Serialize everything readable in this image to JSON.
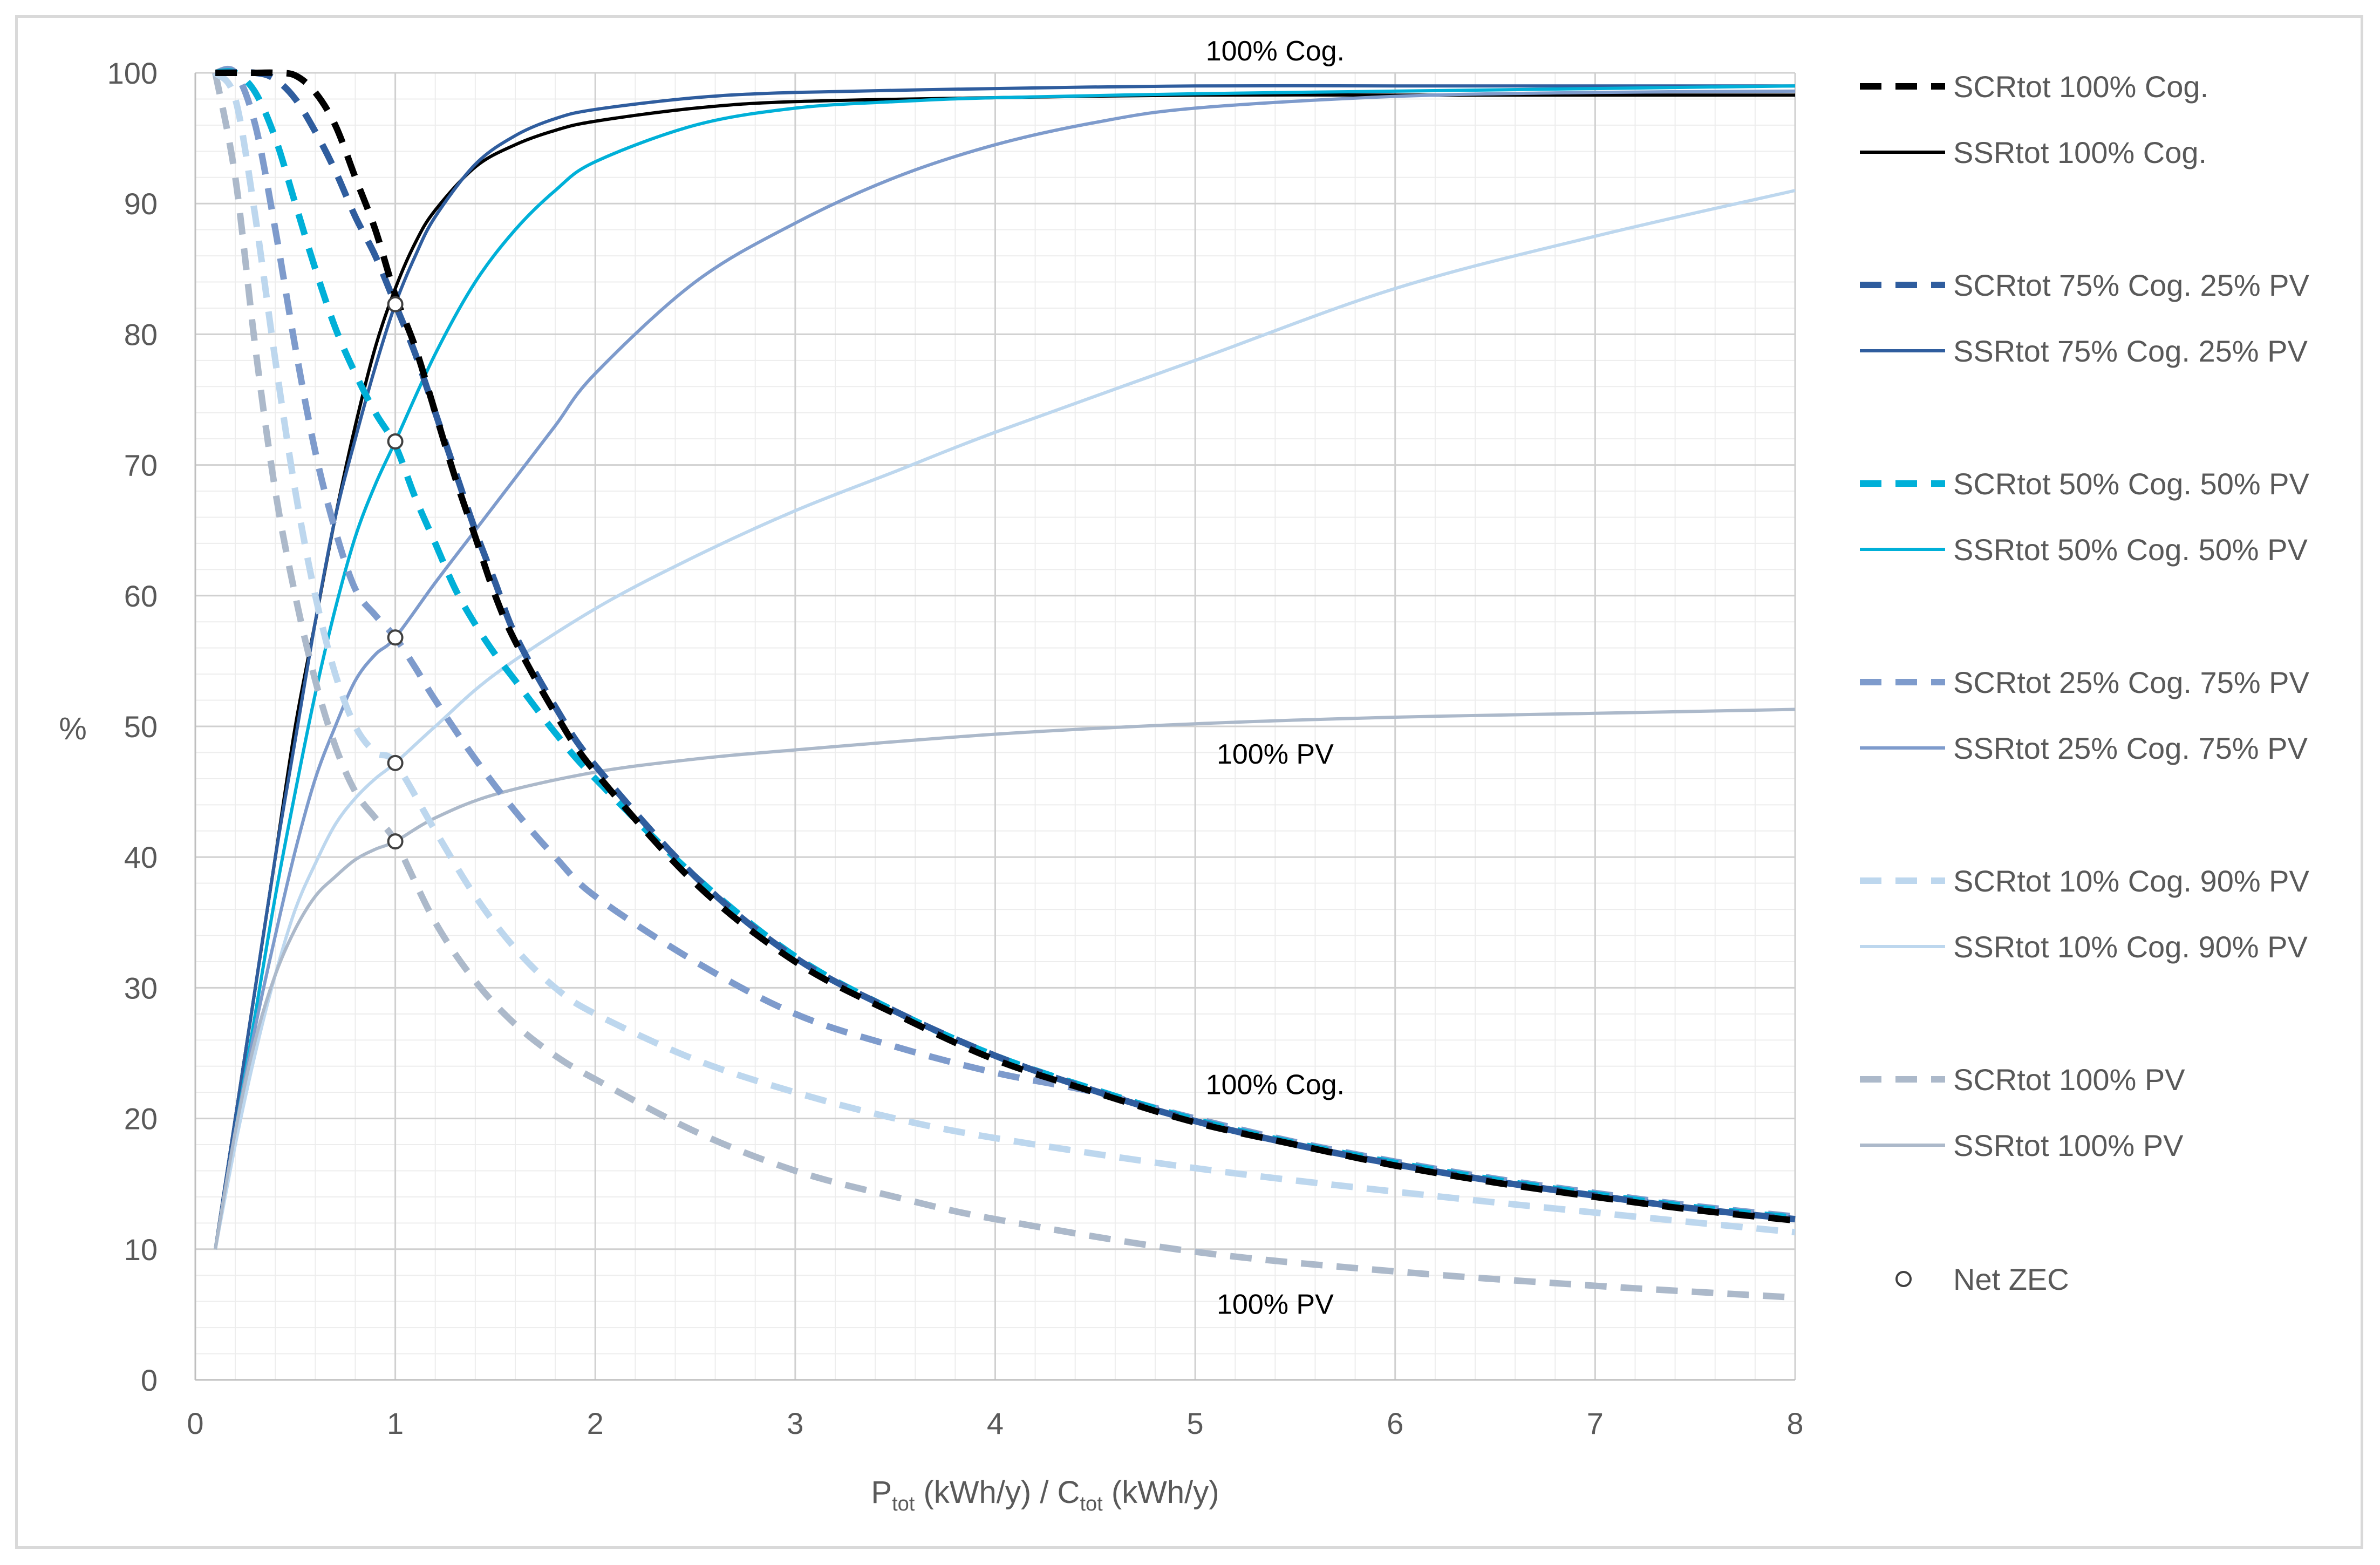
{
  "chart_data": {
    "type": "line",
    "title": "",
    "xlabel": {
      "main": "P",
      "sub": "tot",
      "mid": " (kWh/y) / C",
      "sub2": "tot",
      "end": " (kWh/y)"
    },
    "ylabel": "%",
    "xlim": [
      0,
      8
    ],
    "ylim": [
      0,
      100
    ],
    "xticks": [
      "0",
      "1",
      "2",
      "3",
      "4",
      "5",
      "6",
      "7",
      "8"
    ],
    "yticks": [
      "0",
      "10",
      "20",
      "30",
      "40",
      "50",
      "60",
      "70",
      "80",
      "90",
      "100"
    ],
    "grid": true,
    "legend_position": "right",
    "series": [
      {
        "name": "SCRtot 100% Cog.",
        "color": "#000000",
        "dash": true,
        "kind": "scr",
        "x": [
          0.1,
          0.3,
          0.4,
          0.5,
          0.6,
          0.7,
          0.8,
          0.9,
          1.0,
          1.1,
          1.2,
          1.3,
          1.4,
          1.5,
          1.6,
          1.8,
          2.0,
          2.5,
          3.0,
          3.5,
          4.0,
          4.5,
          5.0,
          5.5,
          6.0,
          6.5,
          7.0,
          7.5,
          8.0
        ],
        "y": [
          100,
          100,
          100,
          99.8,
          98.5,
          96,
          92,
          88,
          83,
          79,
          74,
          69,
          64.5,
          60,
          56.5,
          51,
          46.5,
          38,
          32,
          28,
          24.5,
          22,
          19.7,
          18,
          16.4,
          15.1,
          14,
          13,
          12.2
        ]
      },
      {
        "name": "SSRtot 100% Cog.",
        "color": "#000000",
        "dash": false,
        "kind": "ssr",
        "x": [
          0.1,
          0.2,
          0.3,
          0.4,
          0.5,
          0.6,
          0.7,
          0.8,
          0.9,
          1.0,
          1.1,
          1.2,
          1.4,
          1.6,
          1.8,
          2.0,
          2.5,
          3.0,
          4.0,
          5.0,
          6.0,
          7.0,
          8.0
        ],
        "y": [
          10,
          20,
          30,
          40,
          50,
          58,
          66,
          73,
          79,
          83.5,
          87,
          89.5,
          92.8,
          94.5,
          95.6,
          96.3,
          97.3,
          97.8,
          98.1,
          98.3,
          98.3,
          98.3,
          98.3
        ]
      },
      {
        "name": "SCRtot 75% Cog. 25% PV",
        "color": "#2f5d9e",
        "dash": true,
        "kind": "scr",
        "x": [
          0.1,
          0.3,
          0.4,
          0.5,
          0.6,
          0.7,
          0.8,
          0.9,
          1.0,
          1.1,
          1.2,
          1.3,
          1.4,
          1.5,
          1.6,
          1.8,
          2.0,
          2.5,
          3.0,
          3.5,
          4.0,
          4.5,
          5.0,
          5.5,
          6.0,
          6.5,
          7.0,
          7.5,
          8.0
        ],
        "y": [
          100,
          100,
          99.5,
          98,
          95.5,
          92.5,
          89,
          86,
          82.3,
          78.5,
          74,
          69.5,
          65,
          61,
          57,
          51.5,
          47,
          38.5,
          32.3,
          28.2,
          24.8,
          22.1,
          19.8,
          18,
          16.5,
          15.2,
          14.1,
          13.1,
          12.3
        ]
      },
      {
        "name": "SSRtot 75% Cog. 25% PV",
        "color": "#2f5d9e",
        "dash": false,
        "kind": "ssr",
        "x": [
          0.1,
          0.2,
          0.3,
          0.4,
          0.5,
          0.6,
          0.7,
          0.8,
          0.9,
          1.0,
          1.1,
          1.2,
          1.4,
          1.6,
          1.8,
          2.0,
          2.5,
          3.0,
          4.0,
          5.0,
          6.0,
          7.0,
          8.0
        ],
        "y": [
          10,
          20,
          30,
          40,
          49,
          58,
          66,
          72,
          77.5,
          82.3,
          86,
          89,
          93,
          95.2,
          96.5,
          97.2,
          98.1,
          98.5,
          98.8,
          99,
          99,
          99,
          99
        ]
      },
      {
        "name": "SCRtot 50% Cog. 50% PV",
        "color": "#00b0d8",
        "dash": true,
        "kind": "scr",
        "x": [
          0.1,
          0.2,
          0.3,
          0.4,
          0.5,
          0.6,
          0.7,
          0.8,
          0.9,
          1.0,
          1.1,
          1.2,
          1.3,
          1.4,
          1.5,
          1.6,
          1.8,
          2.0,
          2.5,
          3.0,
          3.5,
          4.0,
          4.5,
          5.0,
          5.5,
          6.0,
          6.5,
          7.0,
          7.5,
          8.0
        ],
        "y": [
          100,
          100,
          98.5,
          95,
          90,
          85,
          80.5,
          77,
          74,
          71.5,
          67.5,
          64,
          60.5,
          57.8,
          55.5,
          53.5,
          49.5,
          46,
          38.5,
          32.4,
          28.2,
          24.8,
          22.2,
          19.9,
          18.1,
          16.6,
          15.3,
          14.2,
          13.2,
          12.4
        ]
      },
      {
        "name": "SSRtot 50% Cog. 50% PV",
        "color": "#00b0d8",
        "dash": false,
        "kind": "ssr",
        "x": [
          0.1,
          0.2,
          0.3,
          0.4,
          0.5,
          0.6,
          0.7,
          0.8,
          0.9,
          1.0,
          1.2,
          1.4,
          1.6,
          1.8,
          2.0,
          2.5,
          3.0,
          3.5,
          4.0,
          5.0,
          6.0,
          7.0,
          8.0
        ],
        "y": [
          10,
          19,
          28,
          37,
          45,
          52.5,
          59,
          64.5,
          68.5,
          71.8,
          78.5,
          84,
          88,
          91,
          93.2,
          96,
          97.3,
          97.8,
          98.1,
          98.4,
          98.6,
          98.8,
          99
        ]
      },
      {
        "name": "SCRtot 25% Cog. 75% PV",
        "color": "#7e9bcc",
        "dash": true,
        "kind": "scr",
        "x": [
          0.1,
          0.2,
          0.3,
          0.4,
          0.5,
          0.6,
          0.7,
          0.8,
          0.9,
          1.0,
          1.1,
          1.2,
          1.4,
          1.6,
          1.8,
          2.0,
          2.5,
          3.0,
          3.5,
          4.0,
          4.5,
          5.0,
          5.5,
          6.0,
          6.5,
          7.0,
          7.5,
          8.0
        ],
        "y": [
          100,
          100,
          96,
          88,
          79,
          71,
          65,
          60.5,
          58.5,
          56.8,
          54.5,
          52,
          47.5,
          43.5,
          40,
          37,
          32,
          28,
          25.5,
          23.5,
          22,
          20,
          18.2,
          16.7,
          15.4,
          14.3,
          13.3,
          12.5
        ]
      },
      {
        "name": "SSRtot 25% Cog. 75% PV",
        "color": "#7e9bcc",
        "dash": false,
        "kind": "ssr",
        "x": [
          0.1,
          0.2,
          0.3,
          0.4,
          0.5,
          0.6,
          0.7,
          0.8,
          0.9,
          1.0,
          1.2,
          1.4,
          1.6,
          1.8,
          2.0,
          2.5,
          3.0,
          3.5,
          4.0,
          4.5,
          5.0,
          6.0,
          7.0,
          8.0
        ],
        "y": [
          10,
          19,
          27,
          34,
          40.5,
          46,
          50,
          53.5,
          55.5,
          56.8,
          61,
          65,
          69,
          73,
          77,
          84,
          88.5,
          92,
          94.5,
          96.2,
          97.3,
          98.2,
          98.5,
          98.6
        ]
      },
      {
        "name": "SCRtot 10% Cog. 90% PV",
        "color": "#bdd7ee",
        "dash": true,
        "kind": "scr",
        "x": [
          0.1,
          0.2,
          0.3,
          0.4,
          0.5,
          0.6,
          0.7,
          0.8,
          0.9,
          1.0,
          1.2,
          1.4,
          1.6,
          1.8,
          2.0,
          2.5,
          3.0,
          3.5,
          4.0,
          5.0,
          6.0,
          7.0,
          8.0
        ],
        "y": [
          100,
          98,
          89,
          78,
          68,
          60,
          54,
          50,
          48,
          47.2,
          42,
          37,
          33,
          30,
          28,
          24.5,
          22,
          20,
          18.5,
          16.2,
          14.4,
          12.8,
          11.3
        ]
      },
      {
        "name": "SSRtot 10% Cog. 90% PV",
        "color": "#bdd7ee",
        "dash": false,
        "kind": "ssr",
        "x": [
          0.1,
          0.2,
          0.3,
          0.4,
          0.5,
          0.6,
          0.7,
          0.8,
          0.9,
          1.0,
          1.2,
          1.5,
          2.0,
          2.5,
          3.0,
          3.5,
          4.0,
          5.0,
          6.0,
          7.0,
          8.0
        ],
        "y": [
          10,
          18,
          25,
          31,
          36,
          39.5,
          42.5,
          44.5,
          46,
          47.2,
          50,
          54,
          59,
          63,
          66.5,
          69.5,
          72.5,
          78,
          83.5,
          87.5,
          91
        ]
      },
      {
        "name": "SCRtot 100% PV",
        "color": "#acb9ca",
        "dash": true,
        "kind": "scr",
        "x": [
          0.1,
          0.2,
          0.3,
          0.4,
          0.5,
          0.6,
          0.7,
          0.8,
          0.9,
          1.0,
          1.2,
          1.4,
          1.6,
          1.8,
          2.0,
          2.5,
          3.0,
          3.5,
          4.0,
          5.0,
          6.0,
          7.0,
          8.0
        ],
        "y": [
          100,
          92,
          79,
          68,
          60,
          53.5,
          48.5,
          45,
          43,
          41.2,
          35,
          30.5,
          27.2,
          24.8,
          23,
          19,
          16,
          14,
          12.3,
          9.8,
          8.3,
          7.2,
          6.3
        ]
      },
      {
        "name": "SSRtot 100% PV",
        "color": "#acb9ca",
        "dash": false,
        "kind": "ssr",
        "x": [
          0.1,
          0.2,
          0.3,
          0.4,
          0.5,
          0.6,
          0.7,
          0.8,
          0.9,
          1.0,
          1.2,
          1.5,
          2.0,
          2.5,
          3.0,
          4.0,
          5.0,
          6.0,
          7.0,
          8.0
        ],
        "y": [
          10,
          19,
          26,
          31,
          34.5,
          37,
          38.5,
          39.8,
          40.6,
          41.2,
          43,
          44.8,
          46.5,
          47.5,
          48.2,
          49.4,
          50.2,
          50.7,
          51,
          51.3
        ]
      }
    ],
    "net_zec_points": [
      {
        "x": 1.0,
        "y": 82.3
      },
      {
        "x": 1.0,
        "y": 71.8
      },
      {
        "x": 1.0,
        "y": 56.8
      },
      {
        "x": 1.0,
        "y": 47.2
      },
      {
        "x": 1.0,
        "y": 41.2
      }
    ],
    "net_zec_label": "Net ZEC",
    "annotations": [
      {
        "text": "100% Cog.",
        "x": 5.4,
        "y": 101.7
      },
      {
        "text": "100% PV",
        "x": 5.4,
        "y": 47.9
      },
      {
        "text": "100% Cog.",
        "x": 5.4,
        "y": 22.6
      },
      {
        "text": "100% PV",
        "x": 5.4,
        "y": 5.8
      }
    ]
  }
}
